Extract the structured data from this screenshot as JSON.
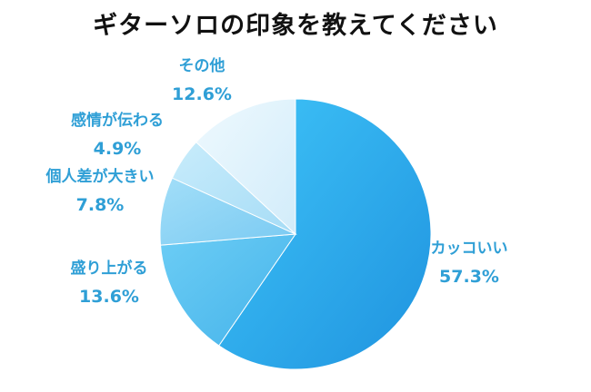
{
  "chart_data": {
    "type": "pie",
    "title": "ギターソロの印象を教えてください",
    "start_angle_deg": 0,
    "direction": "clockwise",
    "slices": [
      {
        "label": "カッコいい",
        "value": 57.3,
        "display": "57.3%",
        "color": "#2aa8eb"
      },
      {
        "label": "盛り上がる",
        "value": 13.6,
        "display": "13.6%",
        "color": "#56c2f2"
      },
      {
        "label": "個人差が大きい",
        "value": 7.8,
        "display": "7.8%",
        "color": "#8ad5f6"
      },
      {
        "label": "感情が伝わる",
        "value": 4.9,
        "display": "4.9%",
        "color": "#b3e3f9"
      },
      {
        "label": "その他",
        "value": 12.6,
        "display": "12.6%",
        "color": "#ddf2fc"
      }
    ]
  }
}
